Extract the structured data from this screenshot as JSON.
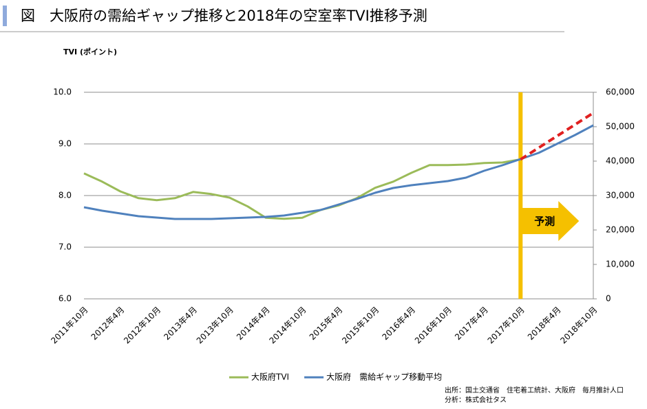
{
  "chart_data": {
    "type": "line",
    "title": "図　大阪府の需給ギャップ推移と2018年の空室率TVI推移予測",
    "y_label": "TVI (ポイント)",
    "categories": [
      "2011年10月",
      null,
      "2012年4月",
      null,
      "2012年10月",
      null,
      "2013年4月",
      null,
      "2013年10月",
      null,
      "2014年4月",
      null,
      "2014年10月",
      null,
      "2015年4月",
      null,
      "2015年10月",
      null,
      "2016年4月",
      null,
      "2016年10月",
      null,
      "2017年4月",
      null,
      "2017年10月",
      null,
      "2018年4月",
      null,
      "2018年10月"
    ],
    "series": [
      {
        "name": "大阪府TVI",
        "color": "#9bbb59",
        "axis": "y",
        "values": [
          8.43,
          8.27,
          8.08,
          7.95,
          7.91,
          7.95,
          8.07,
          8.03,
          7.96,
          7.79,
          7.57,
          7.55,
          7.57,
          7.72,
          7.81,
          7.95,
          8.15,
          8.27,
          8.44,
          8.59,
          8.59,
          8.6,
          8.63,
          8.64,
          8.7,
          null,
          null,
          null,
          null
        ]
      },
      {
        "name": "大阪府　需給ギャップ移動平均",
        "color": "#4f81bd",
        "axis": "y2",
        "values": [
          26600,
          25600,
          24800,
          24000,
          23600,
          23200,
          23200,
          23200,
          23400,
          23600,
          23800,
          24200,
          25000,
          25800,
          27400,
          29000,
          30800,
          32200,
          33000,
          33600,
          34200,
          35200,
          37200,
          38800,
          40600,
          42400,
          45000,
          47600,
          50400
        ]
      }
    ],
    "forecast": {
      "color": "#e02020",
      "axis": "y",
      "dashed": true,
      "values": [
        null,
        null,
        null,
        null,
        null,
        null,
        null,
        null,
        null,
        null,
        null,
        null,
        null,
        null,
        null,
        null,
        null,
        null,
        null,
        null,
        null,
        null,
        null,
        null,
        8.7,
        8.925,
        9.15,
        9.375,
        9.6
      ]
    },
    "forecast_label": "予測",
    "forecast_color": "#f5c000",
    "ylim": [
      6,
      10
    ],
    "yticks": [
      {
        "value": 6,
        "label": "6.0"
      },
      {
        "value": 7,
        "label": "7.0"
      },
      {
        "value": 8,
        "label": "8.0"
      },
      {
        "value": 9,
        "label": "9.0"
      },
      {
        "value": 10,
        "label": "10.0"
      }
    ],
    "y2lim": [
      0,
      60000
    ],
    "y2ticks": [
      0,
      {
        "value": 10000,
        "label": "10,000"
      },
      {
        "value": 20000,
        "label": "20,000"
      },
      {
        "value": 30000,
        "label": "30,000"
      },
      {
        "value": 40000,
        "label": "40,000"
      },
      {
        "value": 50000,
        "label": "50,000"
      },
      {
        "value": 60000,
        "label": "60,000"
      }
    ],
    "grid": true,
    "legend": "bottom",
    "source": [
      "出所：国土交通省　住宅着工統計、大阪府　毎月推計人口",
      "分析：株式会社タス"
    ]
  }
}
